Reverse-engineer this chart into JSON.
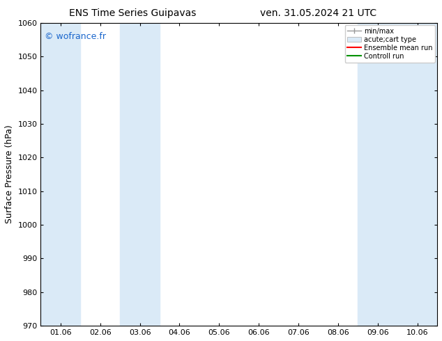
{
  "title_left": "ENS Time Series Guipavas",
  "title_right": "ven. 31.05.2024 21 UTC",
  "ylabel": "Surface Pressure (hPa)",
  "ylim": [
    970,
    1060
  ],
  "yticks": [
    970,
    980,
    990,
    1000,
    1010,
    1020,
    1030,
    1040,
    1050,
    1060
  ],
  "xtick_labels": [
    "01.06",
    "02.06",
    "03.06",
    "04.06",
    "05.06",
    "06.06",
    "07.06",
    "08.06",
    "09.06",
    "10.06"
  ],
  "xtick_positions": [
    0,
    1,
    2,
    3,
    4,
    5,
    6,
    7,
    8,
    9
  ],
  "xlim": [
    -0.5,
    9.5
  ],
  "watermark": "© wofrance.fr",
  "watermark_color": "#1a66cc",
  "background_color": "#ffffff",
  "shaded_color": "#daeaf7",
  "shaded_bands": [
    {
      "x_start": -0.5,
      "x_end": 0.5
    },
    {
      "x_start": 1.5,
      "x_end": 2.5
    },
    {
      "x_start": 7.5,
      "x_end": 8.5
    },
    {
      "x_start": 9.5,
      "x_end": 9.5
    }
  ],
  "legend_entries": [
    {
      "label": "min/max",
      "color": "#999999",
      "style": "errorbar"
    },
    {
      "label": "acute;cart type",
      "color": "#daeaf7",
      "style": "filled_bar"
    },
    {
      "label": "Ensemble mean run",
      "color": "#ff0000",
      "style": "line"
    },
    {
      "label": "Controll run",
      "color": "#009000",
      "style": "line"
    }
  ],
  "title_fontsize": 10,
  "tick_fontsize": 8,
  "ylabel_fontsize": 9,
  "watermark_fontsize": 9
}
